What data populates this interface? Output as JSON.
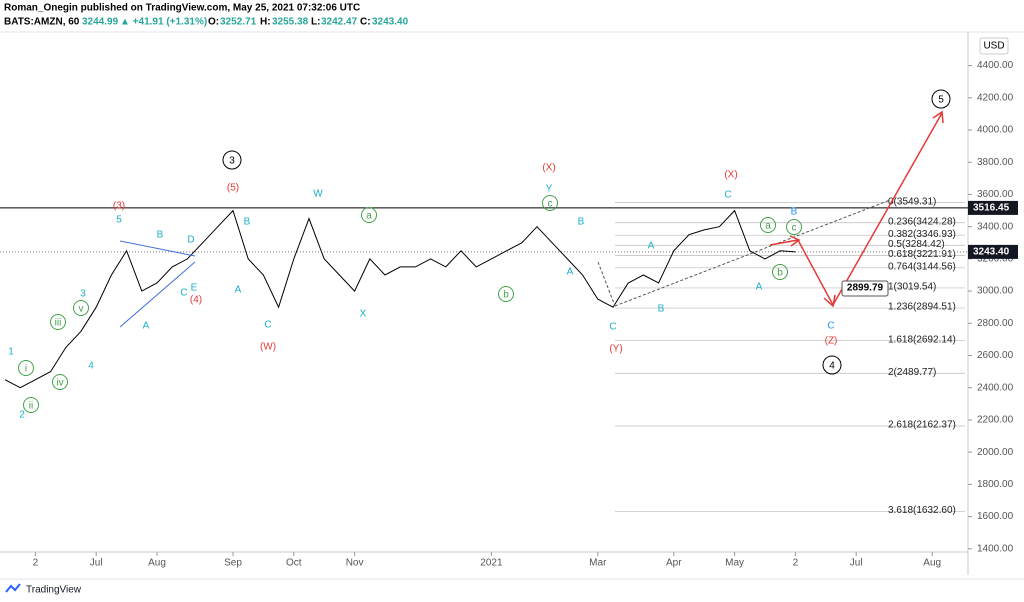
{
  "header": {
    "author_line": "Roman_Onegin published on TradingView.com, May 25, 2021 07:32:06 UTC",
    "symbol": "BATS:AMZN, 60",
    "last": "3244.99",
    "change": "▲ +41.91 (+1.31%)",
    "o_label": "O:",
    "o": "3252.71",
    "h_label": "H:",
    "h": "3255.38",
    "l_label": "L:",
    "l": "3242.47",
    "c_label": "C:",
    "c": "3243.40"
  },
  "chart_data": {
    "type": "line",
    "currency": "USD",
    "color": "#000000",
    "categories": [
      null,
      null,
      "2",
      null,
      null,
      null,
      "Jul",
      null,
      null,
      null,
      "Aug",
      null,
      null,
      null,
      null,
      "Sep",
      null,
      null,
      null,
      "Oct",
      null,
      null,
      null,
      "Nov",
      null,
      null,
      null,
      null,
      null,
      null,
      null,
      null,
      "2021",
      null,
      null,
      null,
      null,
      null,
      null,
      "Mar",
      null,
      null,
      null,
      null,
      "Apr",
      null,
      null,
      null,
      "May",
      null,
      null,
      null,
      "2",
      null,
      null,
      null,
      "Jul",
      null,
      null,
      null,
      null,
      "Aug",
      null
    ],
    "values": [
      2450,
      2400,
      2450,
      2500,
      2650,
      2750,
      2900,
      3100,
      3250,
      3000,
      3050,
      3150,
      3200,
      3300,
      3400,
      3500,
      3200,
      3100,
      2900,
      3200,
      3450,
      3200,
      3100,
      3000,
      3200,
      3100,
      3150,
      3150,
      3200,
      3150,
      3250,
      3150,
      3200,
      3250,
      3300,
      3400,
      3300,
      3200,
      3100,
      2950,
      2900,
      3050,
      3100,
      3050,
      3250,
      3350,
      3380,
      3400,
      3500,
      3250,
      3200,
      3250,
      3243,
      null,
      null,
      null,
      null,
      null,
      null,
      null,
      null,
      null,
      null
    ],
    "ylim": [
      1380,
      4590
    ],
    "yticks": [
      {
        "value": 4400,
        "label": "4400.00"
      },
      {
        "value": 4200,
        "label": "4200.00"
      },
      {
        "value": 4000,
        "label": "4000.00"
      },
      {
        "value": 3800,
        "label": "3800.00"
      },
      {
        "value": 3600,
        "label": "3600.00"
      },
      {
        "value": 3400,
        "label": "3400.00"
      },
      {
        "value": 3200,
        "label": "3200.00"
      },
      {
        "value": 3000,
        "label": "3000.00"
      },
      {
        "value": 2800,
        "label": "2800.00"
      },
      {
        "value": 2600,
        "label": "2600.00"
      },
      {
        "value": 2400,
        "label": "2400.00"
      },
      {
        "value": 2200,
        "label": "2200.00"
      },
      {
        "value": 2000,
        "label": "2000.00"
      },
      {
        "value": 1800,
        "label": "1800.00"
      },
      {
        "value": 1600,
        "label": "1600.00"
      },
      {
        "value": 1400,
        "label": "1400.00"
      }
    ],
    "resistance": 3516.45,
    "last_price": {
      "value": 3243.4,
      "label": "3243.40"
    },
    "target": 2899.79,
    "fib_levels": [
      {
        "value": 3549.31,
        "label": "0(3549.31)"
      },
      {
        "value": 3424.28,
        "label": "0.236(3424.28)"
      },
      {
        "value": 3346.93,
        "label": "0.382(3346.93)"
      },
      {
        "value": 3284.42,
        "label": "0.5(3284.42)"
      },
      {
        "value": 3221.91,
        "label": "0.618(3221.91)"
      },
      {
        "value": 3144.56,
        "label": "0.764(3144.56)"
      },
      {
        "value": 3019.54,
        "label": "1(3019.54)"
      },
      {
        "value": 2894.51,
        "label": "1.236(2894.51)"
      },
      {
        "value": 2692.14,
        "label": "1.618(2692.14)"
      },
      {
        "value": 2489.77,
        "label": "2(2489.77)"
      },
      {
        "value": 2162.37,
        "label": "2.618(2162.37)"
      },
      {
        "value": 1632.6,
        "label": "3.618(1632.60)"
      }
    ],
    "annotations": [
      "3",
      "5",
      "4",
      "(3)",
      "(5)",
      "(4)",
      "(W)",
      "(X)",
      "(X)",
      "(Y)",
      "(Z)",
      "1",
      "2",
      "3",
      "4",
      "5",
      "B",
      "D",
      "E",
      "C",
      "A",
      "B",
      "A",
      "C",
      "W",
      "X",
      "Y",
      "B",
      "A",
      "C",
      "A",
      "B",
      "C",
      "A",
      "B",
      "C",
      "i",
      "ii",
      "iii",
      "iv",
      "v",
      "a",
      "b",
      "c",
      "a",
      "b",
      "c"
    ]
  },
  "footer": {
    "brand": "TradingView"
  }
}
